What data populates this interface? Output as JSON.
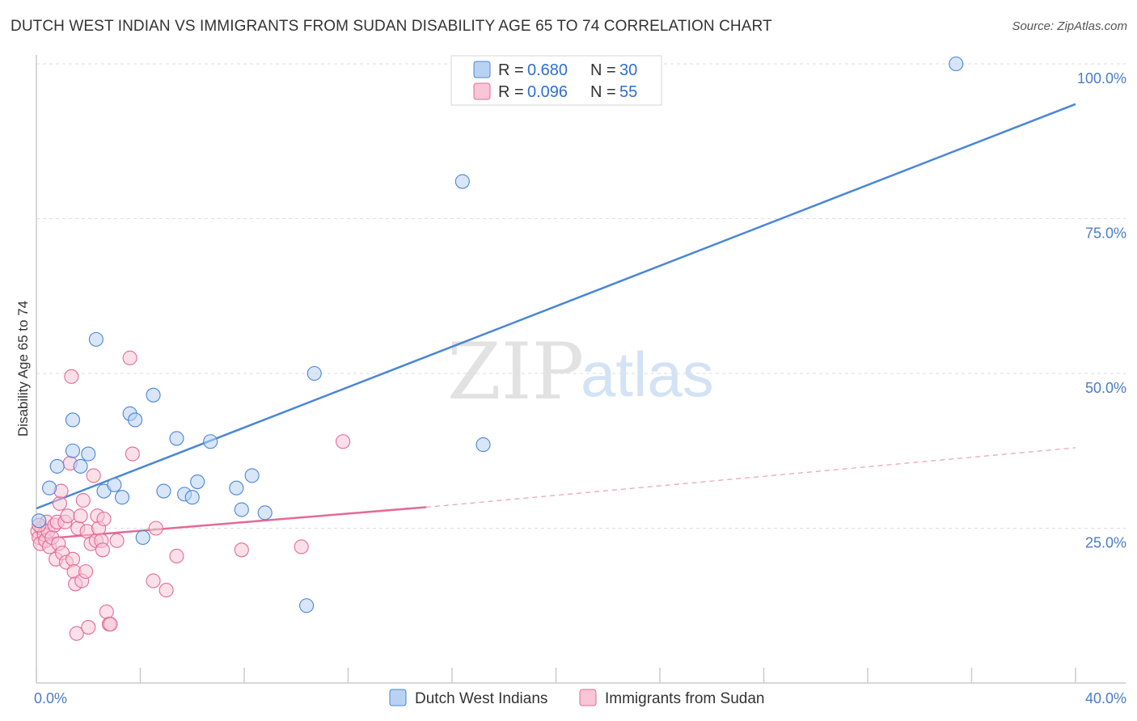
{
  "title": "DUTCH WEST INDIAN VS IMMIGRANTS FROM SUDAN DISABILITY AGE 65 TO 74 CORRELATION CHART",
  "source": "Source: ZipAtlas.com",
  "watermark": {
    "zip": "ZIP",
    "atlas": "atlas"
  },
  "chart_data": {
    "type": "scatter",
    "title": "DUTCH WEST INDIAN VS IMMIGRANTS FROM SUDAN DISABILITY AGE 65 TO 74 CORRELATION CHART",
    "xlabel": "",
    "ylabel": "Disability Age 65 to 74",
    "xlim": [
      0,
      40
    ],
    "ylim": [
      0,
      105
    ],
    "x_tick_labels": [
      {
        "value": 0,
        "label": "0.0%"
      },
      {
        "value": 40,
        "label": "40.0%"
      }
    ],
    "y_tick_labels": [
      {
        "value": 25,
        "label": "25.0%"
      },
      {
        "value": 50,
        "label": "50.0%"
      },
      {
        "value": 75,
        "label": "75.0%"
      },
      {
        "value": 100,
        "label": "100.0%"
      }
    ],
    "grid": true,
    "legend": {
      "placement": "top-center",
      "entries": [
        {
          "r_label": "R = ",
          "r_value": "0.680",
          "n_label": "N = ",
          "n_value": "30"
        },
        {
          "r_label": "R = ",
          "r_value": "0.096",
          "n_label": "N = ",
          "n_value": "55"
        }
      ]
    },
    "series": [
      {
        "name": "Dutch West Indians",
        "color": "#4a86d8",
        "fill": "#b8d2f2",
        "trend": {
          "x": [
            0,
            40
          ],
          "y": [
            28.2,
            93.5
          ],
          "style": "solid"
        },
        "points": [
          [
            0.1,
            26.2
          ],
          [
            0.5,
            31.5
          ],
          [
            0.8,
            35
          ],
          [
            1.4,
            37.5
          ],
          [
            1.4,
            42.5
          ],
          [
            1.7,
            35
          ],
          [
            2.0,
            37
          ],
          [
            2.3,
            55.5
          ],
          [
            2.6,
            31
          ],
          [
            3.0,
            32
          ],
          [
            3.3,
            30
          ],
          [
            3.6,
            43.5
          ],
          [
            3.8,
            42.5
          ],
          [
            4.1,
            23.5
          ],
          [
            4.5,
            46.5
          ],
          [
            4.9,
            31
          ],
          [
            5.4,
            39.5
          ],
          [
            5.7,
            30.5
          ],
          [
            6.0,
            30
          ],
          [
            6.2,
            32.5
          ],
          [
            6.7,
            39
          ],
          [
            7.7,
            31.5
          ],
          [
            7.9,
            28
          ],
          [
            8.3,
            33.5
          ],
          [
            8.8,
            27.5
          ],
          [
            10.4,
            12.5
          ],
          [
            10.7,
            50
          ],
          [
            16.4,
            81
          ],
          [
            17.2,
            38.5
          ],
          [
            35.4,
            100
          ]
        ]
      },
      {
        "name": "Immigrants from Sudan",
        "color": "#e26b96",
        "fill": "#f8c6d6",
        "trend": {
          "x": [
            0,
            15
          ],
          "y": [
            23.2,
            28.4
          ],
          "style": "solid"
        },
        "trend_extension": {
          "x": [
            15,
            40
          ],
          "y": [
            28.4,
            38
          ],
          "style": "dashed"
        },
        "points": [
          [
            0.05,
            24.5
          ],
          [
            0.1,
            23.5
          ],
          [
            0.15,
            22.5
          ],
          [
            0.2,
            25
          ],
          [
            0.3,
            24
          ],
          [
            0.35,
            23
          ],
          [
            0.4,
            26
          ],
          [
            0.45,
            24.5
          ],
          [
            0.5,
            22
          ],
          [
            0.6,
            23.5
          ],
          [
            0.7,
            25.5
          ],
          [
            0.75,
            20
          ],
          [
            0.8,
            26
          ],
          [
            0.85,
            22.5
          ],
          [
            0.9,
            29
          ],
          [
            0.95,
            31
          ],
          [
            1.0,
            21
          ],
          [
            1.1,
            26
          ],
          [
            1.15,
            19.5
          ],
          [
            1.2,
            27
          ],
          [
            1.3,
            35.5
          ],
          [
            1.35,
            49.5
          ],
          [
            1.4,
            20
          ],
          [
            1.45,
            18
          ],
          [
            1.5,
            16
          ],
          [
            1.55,
            8
          ],
          [
            1.6,
            25
          ],
          [
            1.7,
            27
          ],
          [
            1.75,
            16.5
          ],
          [
            1.8,
            29.5
          ],
          [
            1.9,
            18
          ],
          [
            1.95,
            24.5
          ],
          [
            2.0,
            9
          ],
          [
            2.1,
            22.5
          ],
          [
            2.2,
            33.5
          ],
          [
            2.3,
            23
          ],
          [
            2.35,
            27
          ],
          [
            2.4,
            25
          ],
          [
            2.5,
            23
          ],
          [
            2.55,
            21.5
          ],
          [
            2.6,
            26.5
          ],
          [
            2.7,
            11.5
          ],
          [
            2.8,
            9.5
          ],
          [
            2.85,
            9.5
          ],
          [
            3.1,
            23
          ],
          [
            3.6,
            52.5
          ],
          [
            3.7,
            37
          ],
          [
            4.5,
            16.5
          ],
          [
            4.6,
            25
          ],
          [
            5.0,
            15
          ],
          [
            5.4,
            20.5
          ],
          [
            7.9,
            21.5
          ],
          [
            10.2,
            22
          ],
          [
            11.8,
            39
          ],
          [
            0.1,
            25.5
          ]
        ]
      }
    ]
  }
}
